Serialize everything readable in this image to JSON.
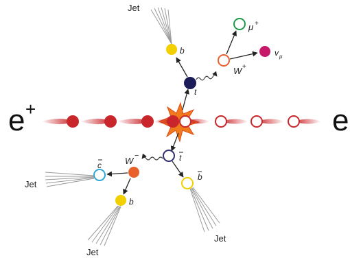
{
  "beams": {
    "left_label": "e",
    "left_charge": "+",
    "right_label": "e"
  },
  "particles": {
    "top_quark": "t",
    "anti_top_quark": "t",
    "b_quark_top": "b",
    "w_plus": "W",
    "w_plus_charge": "+",
    "muon": "μ",
    "muon_charge": "+",
    "neutrino": "v",
    "neutrino_sub": "μ",
    "w_minus": "W",
    "w_minus_charge": "−",
    "anti_charm": "c",
    "b_quark_bottom": "b",
    "anti_b_quark": "b"
  },
  "jets": {
    "top": "Jet",
    "left": "Jet",
    "bottom_left": "Jet",
    "bottom_right": "Jet"
  },
  "colors": {
    "beam_red": "#c8262a",
    "top_navy": "#1c1c58",
    "anti_top": "#2e2e70",
    "b_yellow": "#f2cf00",
    "w_orange": "#e8602c",
    "muon_green": "#1c9a4a",
    "neutrino_magenta": "#c8186a",
    "anti_c_cyan": "#2aa8d8",
    "flash_orange": "#f07a1c",
    "jet_gray": "#9a9a9a"
  }
}
